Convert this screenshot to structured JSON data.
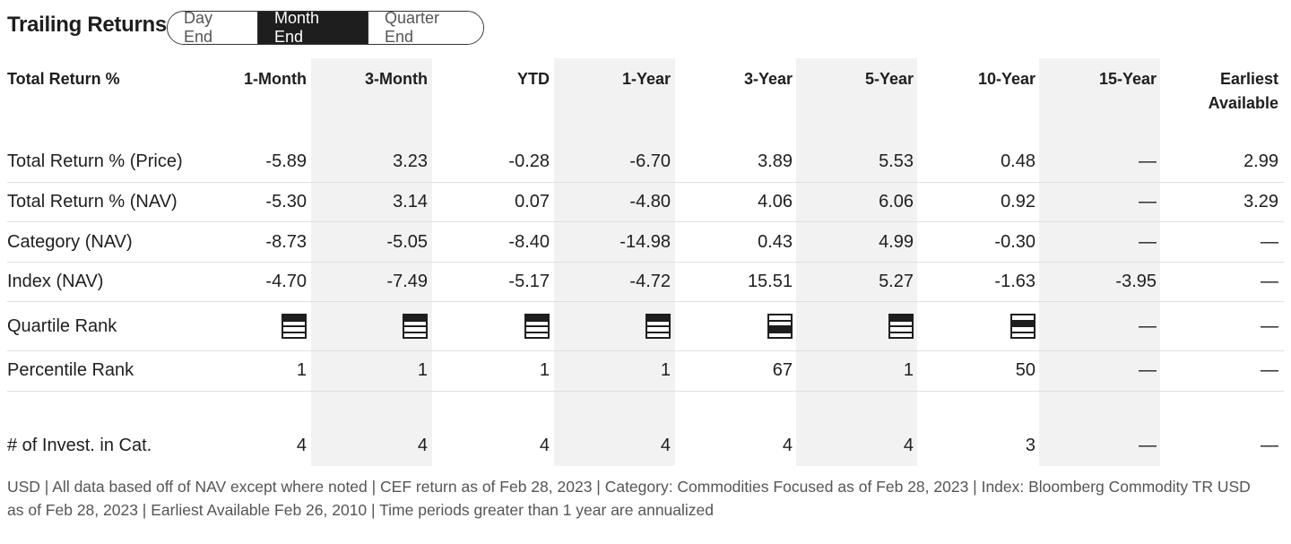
{
  "title": "Trailing Returns",
  "period_toggle": {
    "options": [
      "Day End",
      "Month End",
      "Quarter End"
    ],
    "selected": "Month End"
  },
  "columns": {
    "label": "Total Return %",
    "c1": "1-Month",
    "c2": "3-Month",
    "c3": "YTD",
    "c4": "1-Year",
    "c5": "3-Year",
    "c6": "5-Year",
    "c7": "10-Year",
    "c8": "15-Year",
    "c9_line1": "Earliest",
    "c9_line2": "Available"
  },
  "rows": {
    "price": {
      "label": "Total Return % (Price)",
      "v1": "-5.89",
      "v2": "3.23",
      "v3": "-0.28",
      "v4": "-6.70",
      "v5": "3.89",
      "v6": "5.53",
      "v7": "0.48",
      "v8": "—",
      "v9": "2.99"
    },
    "nav": {
      "label": "Total Return % (NAV)",
      "v1": "-5.30",
      "v2": "3.14",
      "v3": "0.07",
      "v4": "-4.80",
      "v5": "4.06",
      "v6": "6.06",
      "v7": "0.92",
      "v8": "—",
      "v9": "3.29"
    },
    "category": {
      "label": "Category (NAV)",
      "v1": "-8.73",
      "v2": "-5.05",
      "v3": "-8.40",
      "v4": "-14.98",
      "v5": "0.43",
      "v6": "4.99",
      "v7": "-0.30",
      "v8": "—",
      "v9": "—"
    },
    "index": {
      "label": "Index (NAV)",
      "v1": "-4.70",
      "v2": "-7.49",
      "v3": "-5.17",
      "v4": "-4.72",
      "v5": "15.51",
      "v6": "5.27",
      "v7": "-1.63",
      "v8": "-3.95",
      "v9": "—"
    },
    "quartile": {
      "label": "Quartile Rank",
      "ranks": [
        1,
        1,
        1,
        1,
        3,
        1,
        2
      ],
      "v8": "—",
      "v9": "—"
    },
    "percentile": {
      "label": "Percentile Rank",
      "v1": "1",
      "v2": "1",
      "v3": "1",
      "v4": "1",
      "v5": "67",
      "v6": "1",
      "v7": "50",
      "v8": "—",
      "v9": "—"
    },
    "count": {
      "label": "# of Invest. in Cat.",
      "v1": "4",
      "v2": "4",
      "v3": "4",
      "v4": "4",
      "v5": "4",
      "v6": "4",
      "v7": "3",
      "v8": "—",
      "v9": "—"
    }
  },
  "footer": "USD | All data based off of NAV except where noted | CEF return as of Feb 28, 2023 |  Category: Commodities Focused as of Feb 28, 2023 |  Index: Bloomberg Commodity TR USD as of Feb 28, 2023 |  Earliest Available Feb 26, 2010 |  Time periods greater than 1 year are annualized"
}
